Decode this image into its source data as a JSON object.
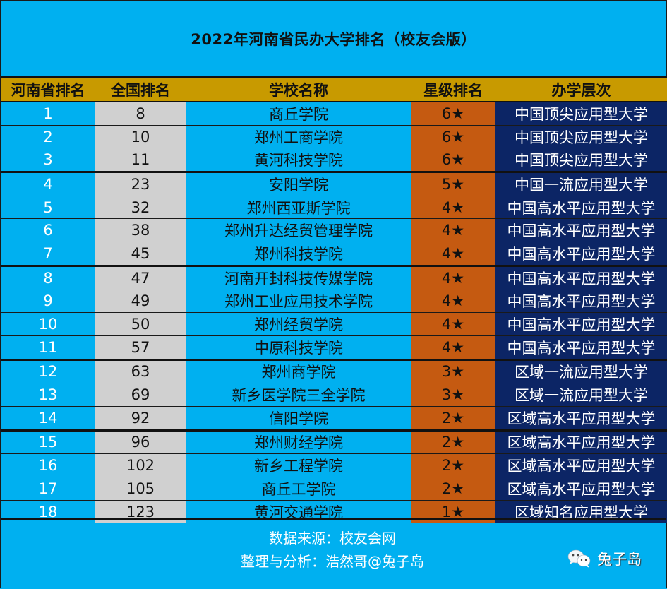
{
  "title": "2022年河南省民办大学排名（校友会版）",
  "table": {
    "headers": [
      "河南省排名",
      "全国排名",
      "学校名称",
      "星级排名",
      "办学层次"
    ],
    "rows": [
      {
        "prov": "1",
        "nat": "8",
        "name": "商丘学院",
        "star": "6★",
        "level": "中国顶尖应用型大学"
      },
      {
        "prov": "2",
        "nat": "10",
        "name": "郑州工商学院",
        "star": "6★",
        "level": "中国顶尖应用型大学"
      },
      {
        "prov": "3",
        "nat": "11",
        "name": "黄河科技学院",
        "star": "6★",
        "level": "中国顶尖应用型大学"
      },
      {
        "prov": "4",
        "nat": "23",
        "name": "安阳学院",
        "star": "5★",
        "level": "中国一流应用型大学"
      },
      {
        "prov": "5",
        "nat": "32",
        "name": "郑州西亚斯学院",
        "star": "4★",
        "level": "中国高水平应用型大学"
      },
      {
        "prov": "6",
        "nat": "38",
        "name": "郑州升达经贸管理学院",
        "star": "4★",
        "level": "中国高水平应用型大学"
      },
      {
        "prov": "7",
        "nat": "45",
        "name": "郑州科技学院",
        "star": "4★",
        "level": "中国高水平应用型大学"
      },
      {
        "prov": "8",
        "nat": "47",
        "name": "河南开封科技传媒学院",
        "star": "4★",
        "level": "中国高水平应用型大学"
      },
      {
        "prov": "9",
        "nat": "49",
        "name": "郑州工业应用技术学院",
        "star": "4★",
        "level": "中国高水平应用型大学"
      },
      {
        "prov": "10",
        "nat": "50",
        "name": "郑州经贸学院",
        "star": "4★",
        "level": "中国高水平应用型大学"
      },
      {
        "prov": "11",
        "nat": "57",
        "name": "中原科技学院",
        "star": "4★",
        "level": "中国高水平应用型大学"
      },
      {
        "prov": "12",
        "nat": "63",
        "name": "郑州商学院",
        "star": "3★",
        "level": "区域一流应用型大学"
      },
      {
        "prov": "13",
        "nat": "69",
        "name": "新乡医学院三全学院",
        "star": "3★",
        "level": "区域一流应用型大学"
      },
      {
        "prov": "14",
        "nat": "92",
        "name": "信阳学院",
        "star": "2★",
        "level": "区域高水平应用型大学"
      },
      {
        "prov": "15",
        "nat": "96",
        "name": "郑州财经学院",
        "star": "2★",
        "level": "区域高水平应用型大学"
      },
      {
        "prov": "16",
        "nat": "102",
        "name": "新乡工程学院",
        "star": "2★",
        "level": "区域高水平应用型大学"
      },
      {
        "prov": "17",
        "nat": "105",
        "name": "商丘工学院",
        "star": "2★",
        "level": "区域高水平应用型大学"
      },
      {
        "prov": "18",
        "nat": "123",
        "name": "黄河交通学院",
        "star": "1★",
        "level": "区域知名应用型大学"
      }
    ]
  },
  "footer": {
    "source": "数据来源：校友会网",
    "credit": "整理与分析：浩然哥@兔子岛",
    "brand_icon": "wechat-icon",
    "brand_name": "兔子岛"
  },
  "colors": {
    "background": "#00b0f0",
    "header": "#c89a00",
    "national_col": "#d0d0d0",
    "star_col": "#c55a11",
    "level_col": "#0c2565"
  }
}
